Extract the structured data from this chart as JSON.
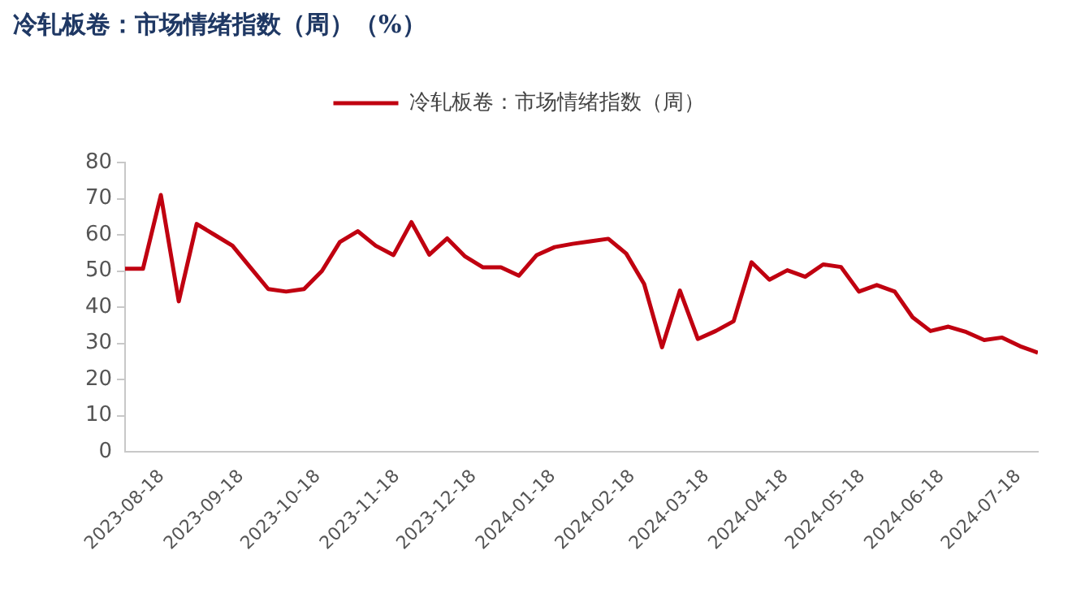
{
  "chart_data": {
    "type": "line",
    "title": "冷轧板卷：市场情绪指数（周）（%）",
    "x": [
      "2023-08-18",
      "2023-08-25",
      "2023-09-01",
      "2023-09-08",
      "2023-09-15",
      "2023-09-22",
      "2023-09-29",
      "2023-10-06",
      "2023-10-13",
      "2023-10-20",
      "2023-10-27",
      "2023-11-03",
      "2023-11-10",
      "2023-11-17",
      "2023-11-24",
      "2023-12-01",
      "2023-12-08",
      "2023-12-15",
      "2023-12-22",
      "2023-12-29",
      "2024-01-05",
      "2024-01-12",
      "2024-01-19",
      "2024-01-26",
      "2024-02-02",
      "2024-02-09",
      "2024-02-16",
      "2024-02-23",
      "2024-03-01",
      "2024-03-08",
      "2024-03-15",
      "2024-03-22",
      "2024-03-29",
      "2024-04-05",
      "2024-04-12",
      "2024-04-19",
      "2024-04-26",
      "2024-05-03",
      "2024-05-10",
      "2024-05-17",
      "2024-05-24",
      "2024-05-31",
      "2024-06-07",
      "2024-06-14",
      "2024-06-21",
      "2024-06-28",
      "2024-07-05",
      "2024-07-12",
      "2024-07-19",
      "2024-07-26",
      "2024-08-02",
      "2024-08-09"
    ],
    "series": [
      {
        "name": "冷轧板卷：市场情绪指数（周）",
        "color": "#c00010",
        "values": [
          50.6,
          50.6,
          71,
          41.6,
          63,
          60,
          57,
          51,
          45,
          44.3,
          45,
          50,
          58,
          61,
          57,
          54.4,
          63.5,
          54.5,
          59,
          54,
          51,
          51,
          48.7,
          54.4,
          56.6,
          57.5,
          58.2,
          58.9,
          54.8,
          46.4,
          28.9,
          44.6,
          31.2,
          33.4,
          36.1,
          52.4,
          47.6,
          50.2,
          48.4,
          51.8,
          51.1,
          44.3,
          46.1,
          44.3,
          37.2,
          33.4,
          34.6,
          33.1,
          30.9,
          31.6,
          29.2,
          27.4
        ]
      }
    ],
    "xlim": [
      "2023-08-18",
      "2024-08-09"
    ],
    "xticks": [
      "2023-08-18",
      "2023-09-18",
      "2023-10-18",
      "2023-11-18",
      "2023-12-18",
      "2024-01-18",
      "2024-02-18",
      "2024-03-18",
      "2024-04-18",
      "2024-05-18",
      "2024-06-18",
      "2024-07-18"
    ],
    "ylim": [
      0,
      80
    ],
    "yticks": [
      0,
      10,
      20,
      30,
      40,
      50,
      60,
      70,
      80
    ],
    "grid": false,
    "legend": "top",
    "marker": "none",
    "line_style": "solid"
  }
}
